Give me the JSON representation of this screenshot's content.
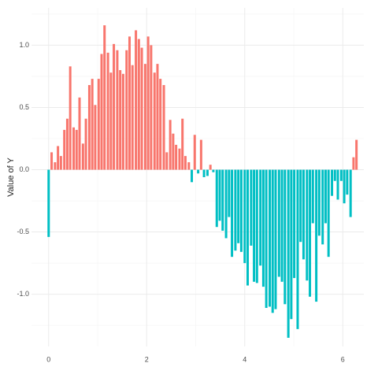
{
  "chart_data": {
    "type": "bar",
    "y_label": "Value of Y",
    "x": [
      0.0,
      0.06,
      0.13,
      0.19,
      0.25,
      0.32,
      0.38,
      0.44,
      0.51,
      0.57,
      0.63,
      0.7,
      0.76,
      0.83,
      0.89,
      0.95,
      1.02,
      1.08,
      1.14,
      1.21,
      1.27,
      1.33,
      1.4,
      1.46,
      1.52,
      1.59,
      1.65,
      1.71,
      1.78,
      1.84,
      1.9,
      1.97,
      2.03,
      2.09,
      2.16,
      2.22,
      2.28,
      2.35,
      2.41,
      2.48,
      2.54,
      2.6,
      2.67,
      2.73,
      2.79,
      2.86,
      2.92,
      2.98,
      3.05,
      3.11,
      3.17,
      3.24,
      3.3,
      3.36,
      3.43,
      3.49,
      3.55,
      3.62,
      3.68,
      3.74,
      3.81,
      3.87,
      3.93,
      4.0,
      4.06,
      4.13,
      4.19,
      4.25,
      4.32,
      4.38,
      4.44,
      4.51,
      4.57,
      4.63,
      4.7,
      4.76,
      4.82,
      4.89,
      4.95,
      5.01,
      5.08,
      5.14,
      5.2,
      5.27,
      5.33,
      5.39,
      5.46,
      5.52,
      5.59,
      5.65,
      5.71,
      5.78,
      5.84,
      5.9,
      5.97,
      6.03,
      6.09,
      6.16,
      6.22,
      6.28
    ],
    "values": [
      -0.54,
      0.14,
      0.06,
      0.19,
      0.11,
      0.32,
      0.41,
      0.83,
      0.34,
      0.32,
      0.58,
      0.21,
      0.41,
      0.68,
      0.73,
      0.52,
      0.73,
      0.93,
      1.16,
      0.94,
      0.78,
      1.01,
      0.96,
      0.8,
      0.77,
      0.96,
      1.07,
      0.84,
      1.12,
      1.05,
      0.98,
      0.85,
      1.07,
      1.0,
      0.78,
      0.85,
      0.73,
      0.68,
      0.14,
      0.4,
      0.29,
      0.2,
      0.17,
      0.41,
      0.11,
      0.06,
      -0.1,
      0.28,
      -0.03,
      0.24,
      -0.06,
      -0.05,
      0.04,
      -0.02,
      -0.46,
      -0.41,
      -0.49,
      -0.55,
      -0.38,
      -0.7,
      -0.65,
      -0.59,
      -0.66,
      -0.75,
      -0.93,
      -0.61,
      -0.9,
      -0.91,
      -0.77,
      -0.94,
      -1.11,
      -1.1,
      -1.15,
      -1.12,
      -0.86,
      -0.9,
      -1.08,
      -1.35,
      -1.2,
      -0.87,
      -1.28,
      -0.58,
      -0.72,
      -0.89,
      -1.02,
      -0.43,
      -1.06,
      -0.53,
      -0.6,
      -0.43,
      -0.7,
      -0.21,
      -0.09,
      -0.24,
      -0.09,
      -0.27,
      -0.2,
      -0.38,
      0.1,
      0.24
    ],
    "colors": {
      "positive": "#F8766D",
      "negative": "#00BFC4"
    },
    "xlim": [
      -0.35,
      6.43
    ],
    "ylim": [
      -1.42,
      1.3
    ],
    "xticks": [
      0,
      2,
      4,
      6
    ],
    "yticks": [
      {
        "value": -1,
        "label": "-1.0"
      },
      -0.5,
      {
        "value": 0,
        "label": "0.0"
      },
      0.5,
      {
        "value": 1,
        "label": "1.0"
      }
    ],
    "minor_xticks": [
      1,
      3,
      5
    ],
    "minor_yticks": [
      -1.25,
      -0.75,
      -0.25,
      0.25,
      0.75,
      1.25
    ],
    "grid": true
  }
}
